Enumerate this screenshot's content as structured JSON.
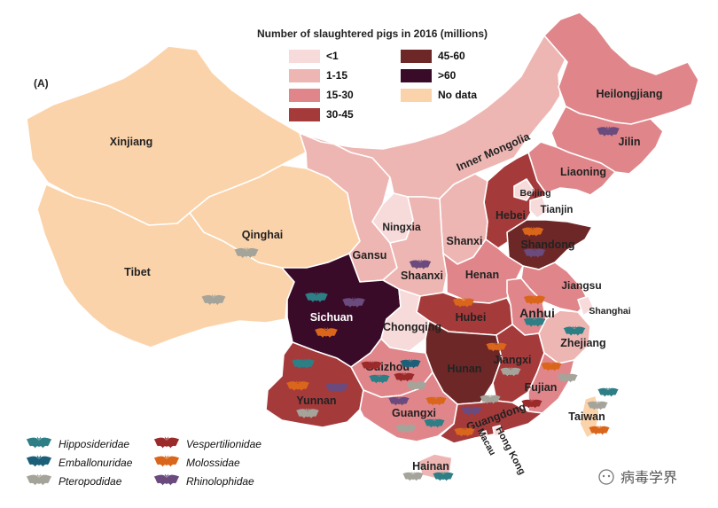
{
  "panel_label": "(A)",
  "legend": {
    "title": "Number of slaughtered pigs in 2016 (millions)",
    "classes": [
      {
        "key": "c1",
        "label": "<1",
        "color": "#f7dada"
      },
      {
        "key": "c2",
        "label": "1-15",
        "color": "#eeb6b3"
      },
      {
        "key": "c3",
        "label": "15-30",
        "color": "#e0868a"
      },
      {
        "key": "c4",
        "label": "30-45",
        "color": "#a53a3b"
      },
      {
        "key": "c5",
        "label": "45-60",
        "color": "#6d2727"
      },
      {
        "key": "c6",
        "label": ">60",
        "color": "#3a0b28"
      },
      {
        "key": "nd",
        "label": "No data",
        "color": "#fbd3aa"
      }
    ]
  },
  "bat_legend": [
    {
      "family": "Hipposideridae",
      "color": "#2e7e86"
    },
    {
      "family": "Vespertilionidae",
      "color": "#9b2a2a"
    },
    {
      "family": "Emballonuridae",
      "color": "#1c5f79"
    },
    {
      "family": "Molossidae",
      "color": "#d9661b"
    },
    {
      "family": "Pteropodidae",
      "color": "#a5a49b"
    },
    {
      "family": "Rhinolophidae",
      "color": "#6b4a7d"
    }
  ],
  "provinces": [
    {
      "id": "xinjiang",
      "name": "Xinjiang",
      "class": "nd"
    },
    {
      "id": "tibet",
      "name": "Tibet",
      "class": "nd"
    },
    {
      "id": "qinghai",
      "name": "Qinghai",
      "class": "nd"
    },
    {
      "id": "gansu",
      "name": "Gansu",
      "class": "c2"
    },
    {
      "id": "inner_mongolia",
      "name": "Inner Mongolia",
      "class": "c2"
    },
    {
      "id": "heilongjiang",
      "name": "Heilongjiang",
      "class": "c3"
    },
    {
      "id": "jilin",
      "name": "Jilin",
      "class": "c3"
    },
    {
      "id": "liaoning",
      "name": "Liaoning",
      "class": "c3"
    },
    {
      "id": "beijing",
      "name": "Beijing",
      "class": "c1"
    },
    {
      "id": "tianjin",
      "name": "Tianjin",
      "class": "c1"
    },
    {
      "id": "hebei",
      "name": "Hebei",
      "class": "c4"
    },
    {
      "id": "shandong",
      "name": "Shandong",
      "class": "c5"
    },
    {
      "id": "ningxia",
      "name": "Ningxia",
      "class": "c1"
    },
    {
      "id": "shanxi",
      "name": "Shanxi",
      "class": "c2"
    },
    {
      "id": "shaanxi",
      "name": "Shaanxi",
      "class": "c2"
    },
    {
      "id": "henan",
      "name": "Henan",
      "class": "c3"
    },
    {
      "id": "jiangsu",
      "name": "Jiangsu",
      "class": "c3"
    },
    {
      "id": "shanghai",
      "name": "Shanghai",
      "class": "c1"
    },
    {
      "id": "anhui",
      "name": "Anhui",
      "class": "c3"
    },
    {
      "id": "hubei",
      "name": "Hubei",
      "class": "c4"
    },
    {
      "id": "sichuan",
      "name": "Sichuan",
      "class": "c6"
    },
    {
      "id": "chongqing",
      "name": "Chongqing",
      "class": "c1"
    },
    {
      "id": "hunan",
      "name": "Hunan",
      "class": "c5"
    },
    {
      "id": "jiangxi",
      "name": "Jiangxi",
      "class": "c4"
    },
    {
      "id": "zhejiang",
      "name": "Zhejiang",
      "class": "c2"
    },
    {
      "id": "fujian",
      "name": "Fujian",
      "class": "c3"
    },
    {
      "id": "guizhou",
      "name": "Guizhou",
      "class": "c3"
    },
    {
      "id": "yunnan",
      "name": "Yunnan",
      "class": "c4"
    },
    {
      "id": "guangxi",
      "name": "Guangxi",
      "class": "c3"
    },
    {
      "id": "guangdong",
      "name": "Guangdong",
      "class": "c4"
    },
    {
      "id": "hainan",
      "name": "Hainan",
      "class": "c2"
    },
    {
      "id": "taiwan",
      "name": "Taiwan",
      "class": "nd"
    },
    {
      "id": "macau",
      "name": "Macau",
      "class": "c1"
    },
    {
      "id": "hong_kong",
      "name": "Hong Kong",
      "class": "c1"
    }
  ],
  "watermark": "病毒学界"
}
